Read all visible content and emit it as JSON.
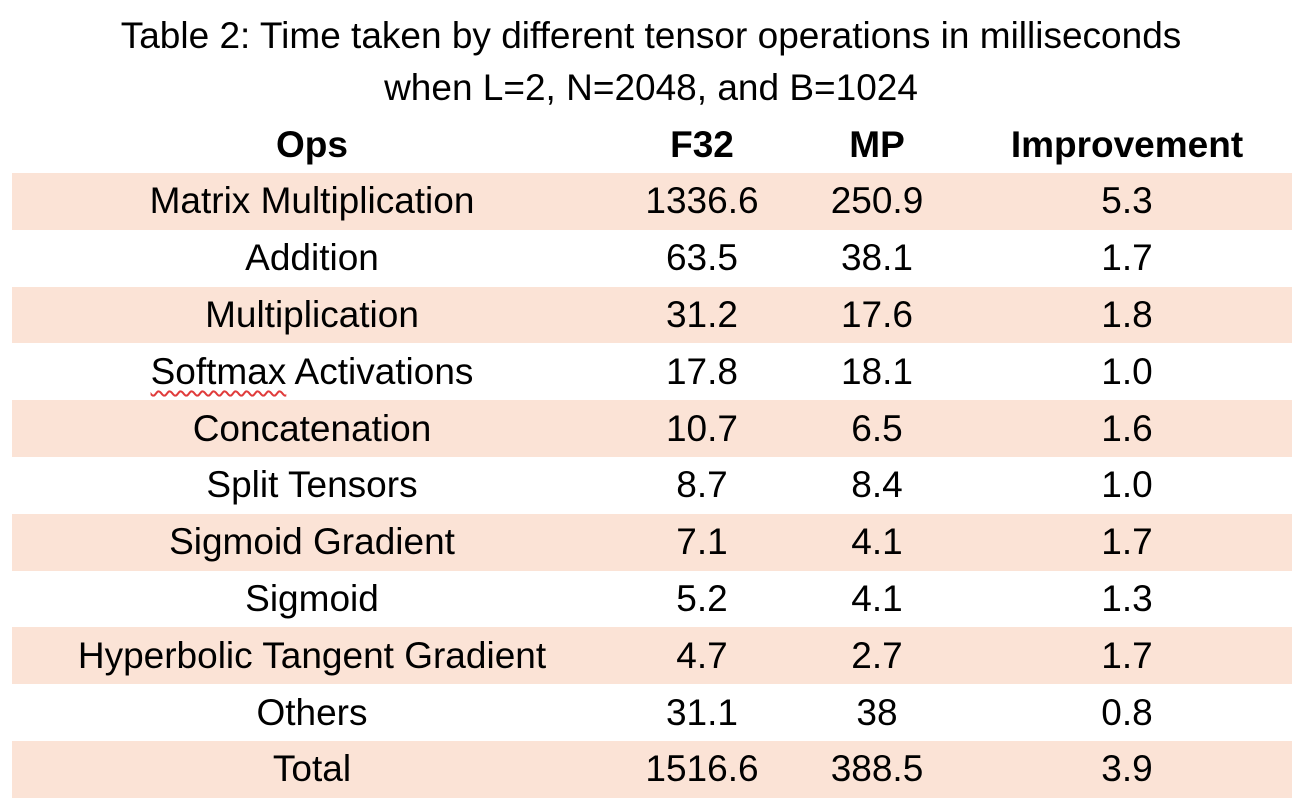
{
  "caption": {
    "line1": "Table 2: Time taken by different tensor operations in milliseconds",
    "line2": "when L=2, N=2048, and B=1024"
  },
  "table": {
    "headers": [
      "Ops",
      "F32",
      "MP",
      "Improvement"
    ],
    "rows": [
      {
        "ops": "Matrix Multiplication",
        "f32": "1336.6",
        "mp": "250.9",
        "improvement": "5.3"
      },
      {
        "ops": "Addition",
        "f32": "63.5",
        "mp": "38.1",
        "improvement": "1.7"
      },
      {
        "ops": "Multiplication",
        "f32": "31.2",
        "mp": "17.6",
        "improvement": "1.8"
      },
      {
        "ops_word1": "Softmax",
        "ops_word2": " Activations",
        "f32": "17.8",
        "mp": "18.1",
        "improvement": "1.0"
      },
      {
        "ops": "Concatenation",
        "f32": "10.7",
        "mp": "6.5",
        "improvement": "1.6"
      },
      {
        "ops": "Split Tensors",
        "f32": "8.7",
        "mp": "8.4",
        "improvement": "1.0"
      },
      {
        "ops": "Sigmoid Gradient",
        "f32": "7.1",
        "mp": "4.1",
        "improvement": "1.7"
      },
      {
        "ops": "Sigmoid",
        "f32": "5.2",
        "mp": "4.1",
        "improvement": "1.3"
      },
      {
        "ops": "Hyperbolic Tangent Gradient",
        "f32": "4.7",
        "mp": "2.7",
        "improvement": "1.7"
      },
      {
        "ops": "Others",
        "f32": "31.1",
        "mp": "38",
        "improvement": "0.8"
      },
      {
        "ops": "Total",
        "f32": "1516.6",
        "mp": "388.5",
        "improvement": "3.9"
      }
    ]
  },
  "colors": {
    "row_shade": "#fbe3d6",
    "spellcheck_underline": "#e03b3b"
  }
}
